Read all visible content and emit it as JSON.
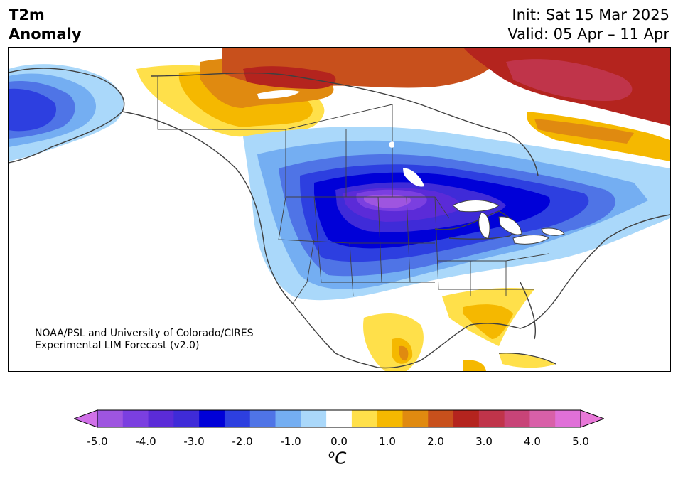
{
  "header": {
    "variable": "T2m",
    "variant": "Anomaly",
    "init": "Init: Sat 15 Mar 2025",
    "valid": "Valid: 05 Apr – 11 Apr"
  },
  "credit": {
    "line1": "NOAA/PSL and University of Colorado/CIRES",
    "line2": "Experimental LIM Forecast (v2.0)"
  },
  "colorbar": {
    "unit_sup": "o",
    "unit_base": "C",
    "ticks": [
      "-5.0",
      "-4.0",
      "-3.0",
      "-2.0",
      "-1.0",
      "0.0",
      "1.0",
      "2.0",
      "3.0",
      "4.0",
      "5.0"
    ],
    "levels": [
      -5.0,
      -4.5,
      -4.0,
      -3.5,
      -3.0,
      -2.5,
      -2.0,
      -1.5,
      -1.0,
      -0.5,
      0.5,
      1.0,
      1.5,
      2.0,
      2.5,
      3.0,
      3.5,
      4.0,
      4.5,
      5.0
    ],
    "colors": [
      "#9e55e0",
      "#7b3fe0",
      "#5b2bd8",
      "#3f2bd8",
      "#0000d8",
      "#2d3fe0",
      "#4f74e6",
      "#74aef2",
      "#aad8fa",
      "#ffffff",
      "#ffe04a",
      "#f5b800",
      "#e08a10",
      "#c8501c",
      "#b4241e",
      "#c0344a",
      "#c84478",
      "#d860a8",
      "#e070d8"
    ],
    "under_color": "#d070e8",
    "over_color": "#e878d8"
  },
  "map": {
    "projection": "North America",
    "background_color": "#ffffff",
    "coast_color": "#404040"
  }
}
